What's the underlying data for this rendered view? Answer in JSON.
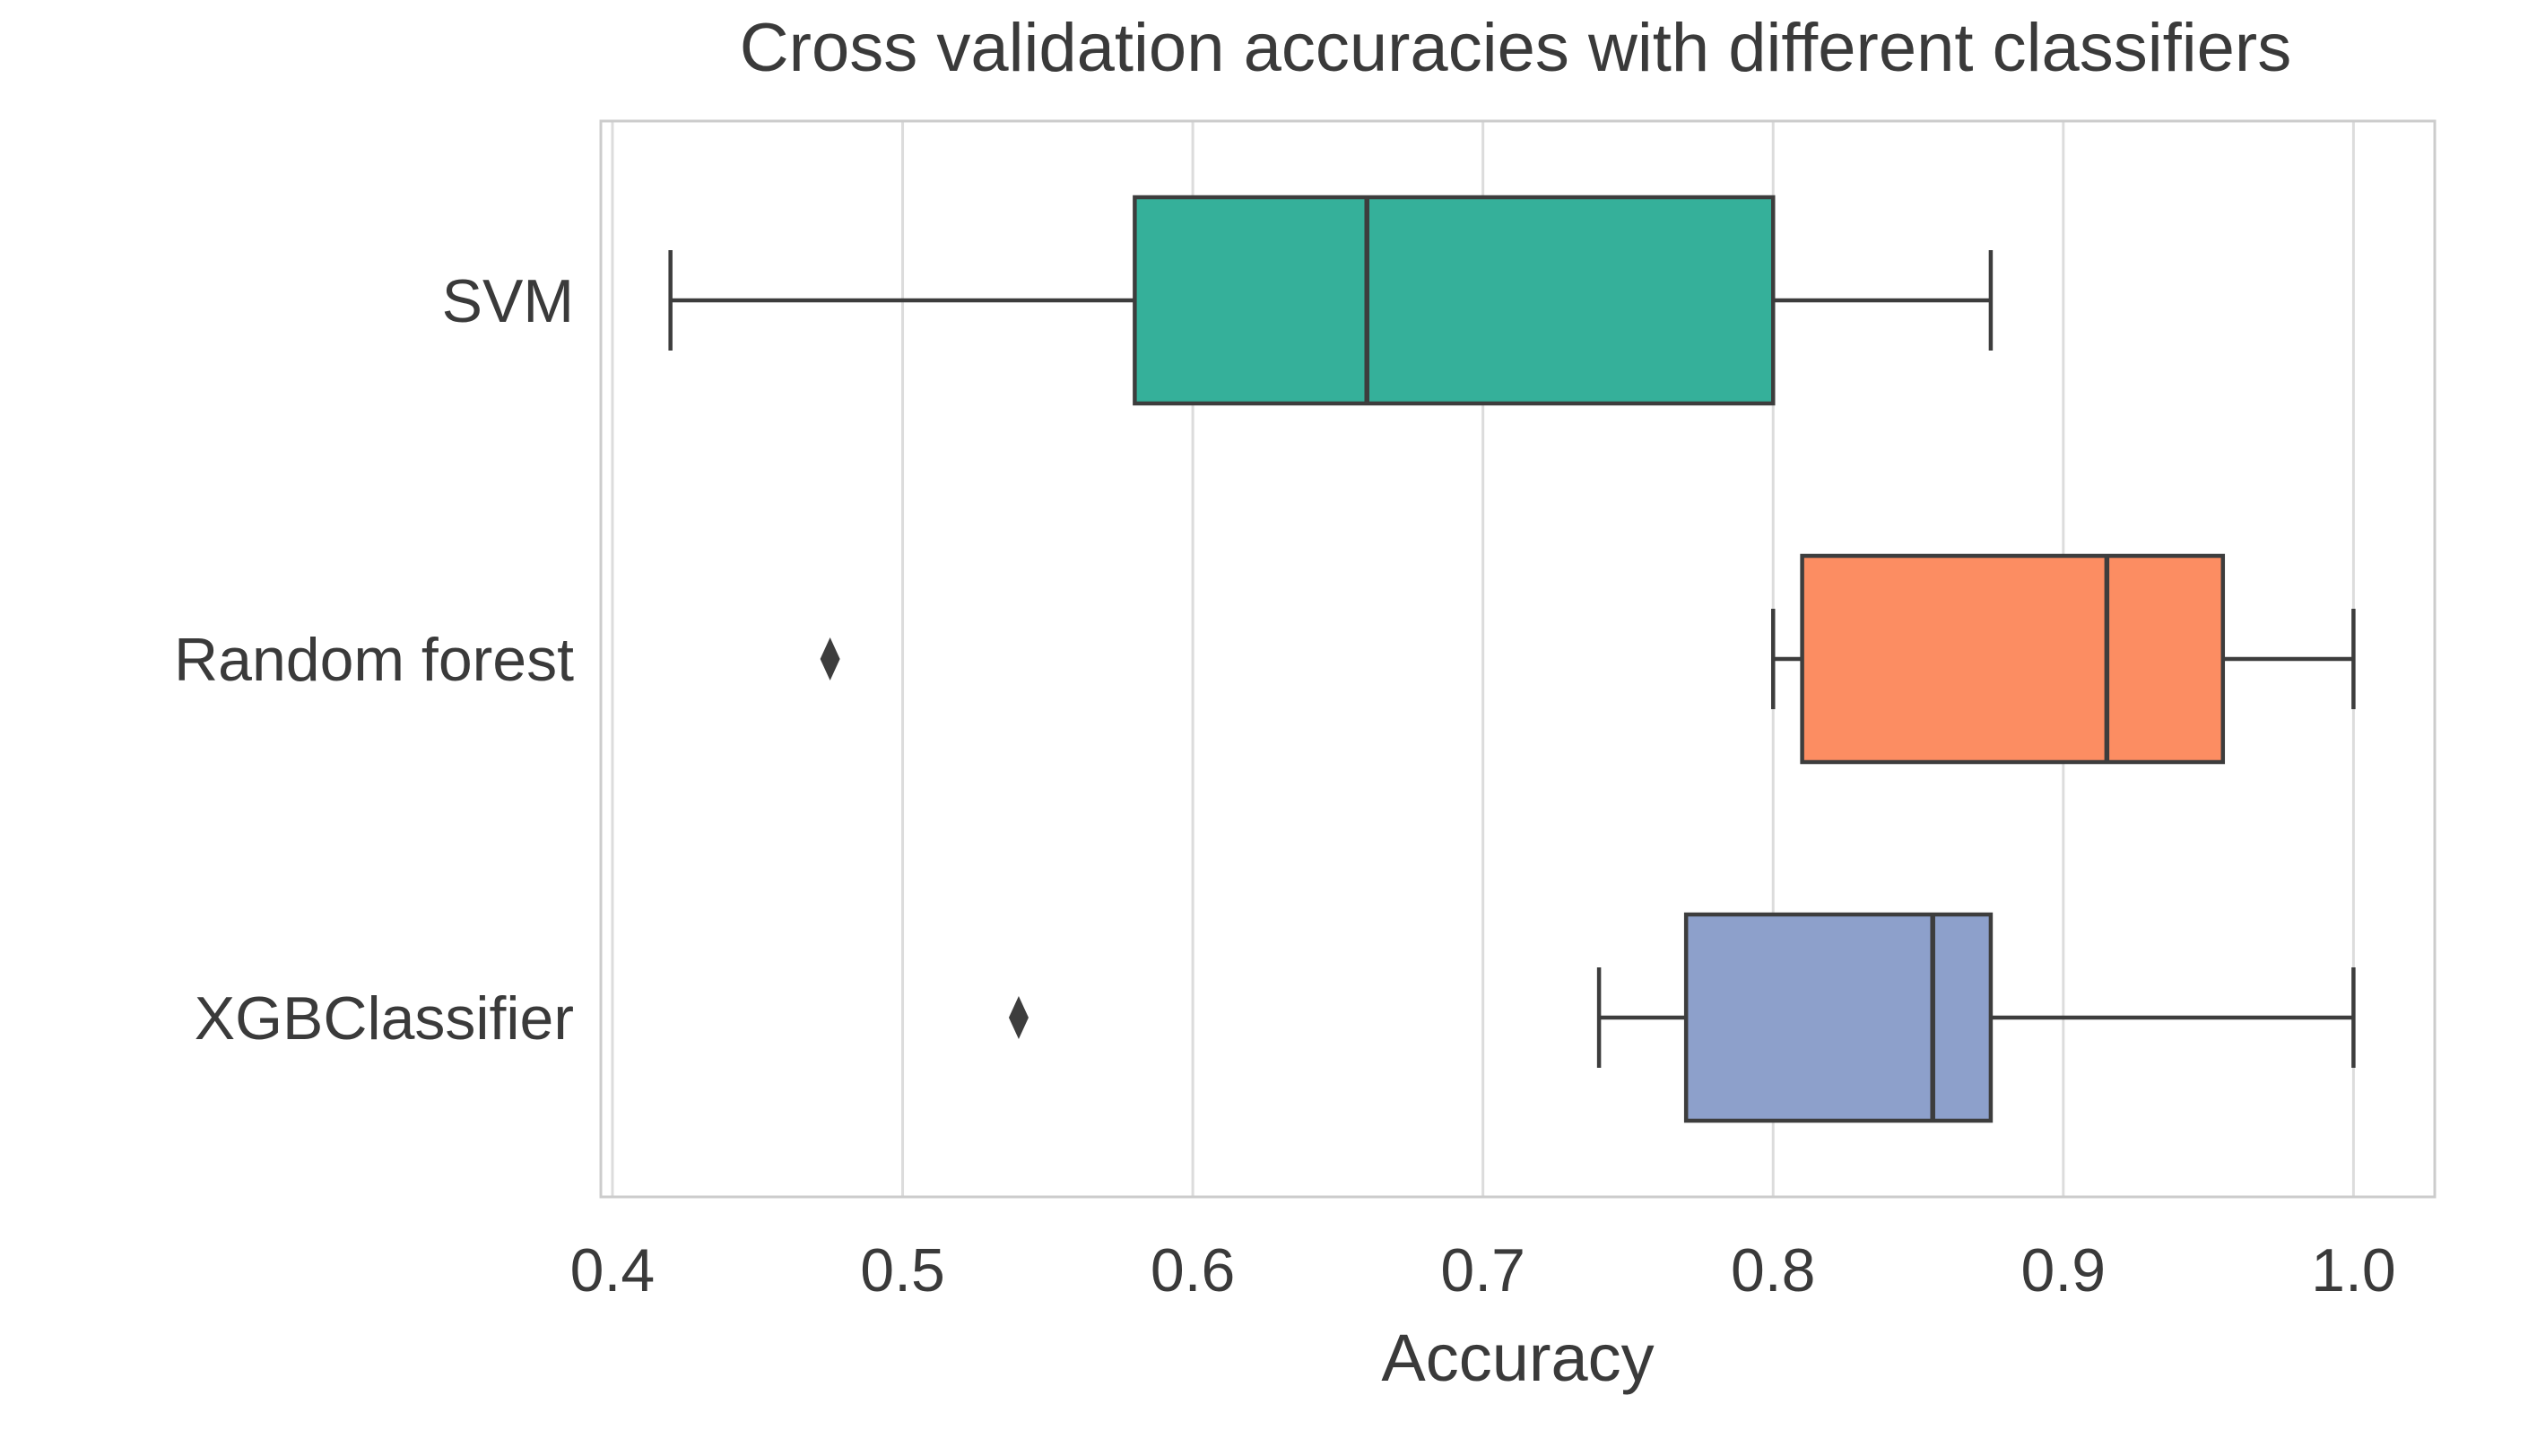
{
  "chart_data": {
    "type": "boxplot",
    "orientation": "horizontal",
    "title": "Cross validation accuracies with different classifiers",
    "xlabel": "Accuracy",
    "ylabel": "",
    "xlim": [
      0.396,
      1.028
    ],
    "xticks": [
      0.4,
      0.5,
      0.6,
      0.7,
      0.8,
      0.9,
      1.0
    ],
    "xtick_labels": [
      "0.4",
      "0.5",
      "0.6",
      "0.7",
      "0.8",
      "0.9",
      "1.0"
    ],
    "grid": "vertical",
    "legend": "none",
    "categories": [
      "SVM",
      "Random forest",
      "XGBClassifier"
    ],
    "series": [
      {
        "label": "SVM",
        "color": "#35b09a",
        "whisker_low": 0.42,
        "q1": 0.58,
        "median": 0.66,
        "q3": 0.8,
        "whisker_high": 0.875,
        "outliers": []
      },
      {
        "label": "Random forest",
        "color": "#fc8d62",
        "whisker_low": 0.8,
        "q1": 0.81,
        "median": 0.915,
        "q3": 0.955,
        "whisker_high": 1.0,
        "outliers": [
          0.475
        ]
      },
      {
        "label": "XGBClassifier",
        "color": "#8da0cb",
        "whisker_low": 0.74,
        "q1": 0.77,
        "median": 0.855,
        "q3": 0.875,
        "whisker_high": 1.0,
        "outliers": [
          0.54
        ]
      }
    ],
    "colors": {
      "box_edge": "#3d3d3d",
      "median_line": "#3d3d3d",
      "outlier": "#3d3d3d",
      "grid": "#dcdcdc",
      "plot_border": "#cccccc",
      "text": "#3a3a3a",
      "background": "#ffffff"
    }
  }
}
